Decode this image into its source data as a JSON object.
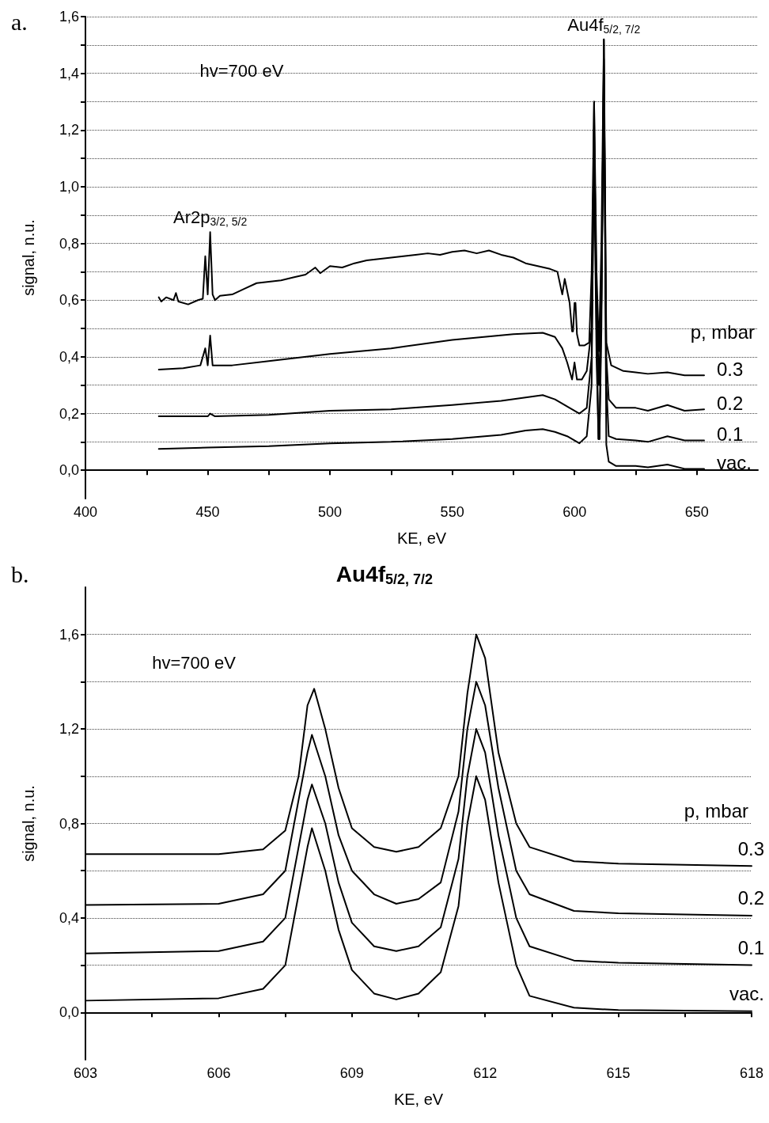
{
  "chart_data": [
    {
      "type": "line",
      "xlabel": "KE, eV",
      "ylabel": "signal, n.u.",
      "legend_title": "p, mbar",
      "legend": false,
      "grid": "y",
      "marker": "none",
      "line_style": "solid",
      "xlim": [
        400,
        675
      ],
      "xticks": [
        400,
        {
          "value": 425,
          "label": null
        },
        450,
        {
          "value": 475,
          "label": null
        },
        500,
        {
          "value": 525,
          "label": null
        },
        550,
        {
          "value": 575,
          "label": null
        },
        600,
        {
          "value": 625,
          "label": null
        },
        650
      ],
      "ylim": [
        -0.1,
        1.6
      ],
      "yticks": [
        {
          "value": 0,
          "label": "0,0"
        },
        {
          "value": 0.1,
          "label": null
        },
        {
          "value": 0.2,
          "label": "0,2"
        },
        {
          "value": 0.3,
          "label": null
        },
        {
          "value": 0.4,
          "label": "0,4"
        },
        {
          "value": 0.5,
          "label": null
        },
        {
          "value": 0.6,
          "label": "0,6"
        },
        {
          "value": 0.7,
          "label": null
        },
        {
          "value": 0.8,
          "label": "0,8"
        },
        {
          "value": 0.9,
          "label": null
        },
        {
          "value": 1.0,
          "label": "1,0"
        },
        {
          "value": 1.1,
          "label": null
        },
        {
          "value": 1.2,
          "label": "1,2"
        },
        {
          "value": 1.3,
          "label": null
        },
        {
          "value": 1.4,
          "label": "1,4"
        },
        {
          "value": 1.5,
          "label": null
        },
        {
          "value": 1.6,
          "label": "1,6"
        }
      ],
      "annotations": [
        "a.",
        "hv=700 eV",
        {
          "text": "Ar2p$_{3/2, 5/2}$",
          "x": 451,
          "y": 0.84
        },
        {
          "text": "Au4f$_{5/2, 7/2}$",
          "x": 612,
          "y": 1.52
        }
      ],
      "series": [
        {
          "name": "0.3",
          "color": "#000000",
          "x": [
            430,
            431,
            433,
            436,
            437,
            438,
            442,
            446,
            448,
            449,
            450,
            451,
            452,
            453,
            455,
            460,
            465,
            470,
            475,
            480,
            485,
            490,
            494,
            496,
            500,
            505,
            510,
            515,
            520,
            525,
            530,
            535,
            540,
            545,
            550,
            555,
            560,
            565,
            570,
            575,
            580,
            585,
            590,
            593,
            595,
            596,
            598,
            599,
            599.4,
            600,
            600.4,
            601,
            602,
            604,
            606,
            607,
            608,
            609,
            610,
            611,
            612,
            613,
            615,
            620,
            625,
            630,
            638,
            645,
            653
          ],
          "values": [
            0.61,
            0.595,
            0.61,
            0.6,
            0.625,
            0.595,
            0.585,
            0.6,
            0.605,
            0.755,
            0.62,
            0.84,
            0.62,
            0.6,
            0.615,
            0.62,
            0.64,
            0.66,
            0.665,
            0.67,
            0.68,
            0.69,
            0.715,
            0.695,
            0.72,
            0.715,
            0.73,
            0.74,
            0.745,
            0.75,
            0.755,
            0.76,
            0.765,
            0.76,
            0.77,
            0.775,
            0.765,
            0.775,
            0.76,
            0.75,
            0.73,
            0.72,
            0.71,
            0.7,
            0.62,
            0.675,
            0.59,
            0.49,
            0.49,
            0.59,
            0.59,
            0.48,
            0.44,
            0.44,
            0.45,
            0.7,
            1.3,
            0.7,
            0.42,
            0.8,
            1.52,
            0.45,
            0.37,
            0.35,
            0.345,
            0.34,
            0.345,
            0.335,
            0.335
          ]
        },
        {
          "name": "0.2",
          "color": "#000000",
          "x": [
            430,
            440,
            447,
            449,
            450,
            451,
            452,
            460,
            475,
            500,
            525,
            550,
            575,
            587,
            592,
            595,
            597,
            599,
            600,
            601,
            603,
            605,
            607,
            608,
            609,
            610,
            611,
            612,
            613,
            614,
            617,
            625,
            630,
            638,
            645,
            653
          ],
          "values": [
            0.355,
            0.36,
            0.37,
            0.43,
            0.37,
            0.475,
            0.37,
            0.37,
            0.385,
            0.41,
            0.43,
            0.46,
            0.48,
            0.485,
            0.47,
            0.43,
            0.38,
            0.32,
            0.38,
            0.32,
            0.32,
            0.35,
            0.5,
            1.2,
            0.6,
            0.3,
            0.6,
            1.45,
            0.4,
            0.25,
            0.22,
            0.22,
            0.21,
            0.23,
            0.21,
            0.215
          ]
        },
        {
          "name": "0.1",
          "color": "#000000",
          "x": [
            430,
            450,
            451,
            453,
            475,
            500,
            525,
            550,
            570,
            587,
            592,
            597,
            602,
            605,
            607,
            608,
            609,
            609.8,
            610.2,
            611,
            612,
            613,
            614,
            617,
            625,
            630,
            638,
            645,
            653
          ],
          "values": [
            0.19,
            0.19,
            0.2,
            0.19,
            0.195,
            0.21,
            0.215,
            0.23,
            0.245,
            0.265,
            0.25,
            0.225,
            0.2,
            0.22,
            0.4,
            1.1,
            0.4,
            0.11,
            0.11,
            0.6,
            1.4,
            0.3,
            0.12,
            0.11,
            0.105,
            0.1,
            0.12,
            0.105,
            0.105
          ]
        },
        {
          "name": "vac.",
          "color": "#000000",
          "x": [
            430,
            450,
            475,
            500,
            525,
            550,
            570,
            580,
            587,
            592,
            597,
            602,
            605,
            607,
            608,
            609,
            609.8,
            610.2,
            611,
            612,
            613,
            614,
            617,
            625,
            630,
            638,
            645,
            653
          ],
          "values": [
            0.075,
            0.08,
            0.085,
            0.095,
            0.1,
            0.11,
            0.125,
            0.14,
            0.145,
            0.135,
            0.12,
            0.095,
            0.12,
            0.3,
            1.3,
            0.5,
            0.11,
            0.11,
            0.5,
            1.52,
            0.09,
            0.03,
            0.015,
            0.015,
            0.01,
            0.02,
            0.005,
            0.005
          ]
        }
      ]
    },
    {
      "type": "line",
      "title": "Au4f$_{5/2, 7/2}$",
      "xlabel": "KE, eV",
      "ylabel": "signal, n.u.",
      "legend_title": "p, mbar",
      "legend": false,
      "grid": "y",
      "marker": "none",
      "line_style": "solid",
      "xlim": [
        603,
        618
      ],
      "xticks": [
        603,
        {
          "value": 604.5,
          "label": null
        },
        606,
        {
          "value": 607.5,
          "label": null
        },
        609,
        {
          "value": 610.5,
          "label": null
        },
        612,
        {
          "value": 613.5,
          "label": null
        },
        615,
        {
          "value": 616.5,
          "label": null
        },
        618
      ],
      "ylim": [
        -0.2,
        1.8
      ],
      "yticks": [
        {
          "value": 0,
          "label": "0,0"
        },
        {
          "value": 0.2,
          "label": null
        },
        {
          "value": 0.4,
          "label": "0,4"
        },
        {
          "value": 0.6,
          "label": null
        },
        {
          "value": 0.8,
          "label": "0,8"
        },
        {
          "value": 1.0,
          "label": null
        },
        {
          "value": 1.2,
          "label": "1,2"
        },
        {
          "value": 1.4,
          "label": null
        },
        {
          "value": 1.6,
          "label": "1,6"
        }
      ],
      "annotations": [
        "b.",
        "hv=700 eV"
      ],
      "series": [
        {
          "name": "0.3",
          "color": "#000000",
          "x": [
            603,
            606,
            607,
            607.5,
            607.8,
            608,
            608.15,
            608.4,
            608.7,
            609,
            609.5,
            610,
            610.5,
            611,
            611.4,
            611.6,
            611.8,
            612,
            612.3,
            612.7,
            613,
            614,
            615,
            618
          ],
          "values": [
            0.67,
            0.67,
            0.69,
            0.77,
            1.0,
            1.3,
            1.37,
            1.2,
            0.95,
            0.78,
            0.7,
            0.68,
            0.7,
            0.78,
            1.0,
            1.35,
            1.6,
            1.5,
            1.1,
            0.8,
            0.7,
            0.64,
            0.63,
            0.62
          ]
        },
        {
          "name": "0.2",
          "color": "#000000",
          "x": [
            603,
            606,
            607,
            607.5,
            607.8,
            608,
            608.1,
            608.4,
            608.7,
            609,
            609.5,
            610,
            610.5,
            611,
            611.4,
            611.6,
            611.8,
            612,
            612.3,
            612.7,
            613,
            614,
            615,
            618
          ],
          "values": [
            0.455,
            0.46,
            0.5,
            0.6,
            0.9,
            1.1,
            1.175,
            1.0,
            0.75,
            0.6,
            0.5,
            0.46,
            0.48,
            0.55,
            0.85,
            1.2,
            1.4,
            1.3,
            0.95,
            0.6,
            0.5,
            0.43,
            0.42,
            0.41
          ]
        },
        {
          "name": "0.1",
          "color": "#000000",
          "x": [
            603,
            606,
            607,
            607.5,
            607.8,
            608,
            608.1,
            608.4,
            608.7,
            609,
            609.5,
            610,
            610.5,
            611,
            611.4,
            611.6,
            611.8,
            612,
            612.3,
            612.7,
            613,
            614,
            615,
            618
          ],
          "values": [
            0.25,
            0.26,
            0.3,
            0.4,
            0.7,
            0.9,
            0.965,
            0.8,
            0.55,
            0.38,
            0.28,
            0.26,
            0.28,
            0.36,
            0.65,
            1.0,
            1.2,
            1.1,
            0.75,
            0.4,
            0.28,
            0.22,
            0.21,
            0.2
          ]
        },
        {
          "name": "vac.",
          "color": "#000000",
          "x": [
            603,
            606,
            607,
            607.5,
            607.8,
            608,
            608.1,
            608.4,
            608.7,
            609,
            609.5,
            610,
            610.5,
            611,
            611.4,
            611.6,
            611.8,
            612,
            612.3,
            612.7,
            613,
            614,
            615,
            618
          ],
          "values": [
            0.05,
            0.06,
            0.1,
            0.2,
            0.5,
            0.7,
            0.78,
            0.6,
            0.35,
            0.18,
            0.08,
            0.055,
            0.08,
            0.17,
            0.45,
            0.8,
            1.0,
            0.9,
            0.55,
            0.2,
            0.07,
            0.02,
            0.01,
            0.005
          ]
        }
      ]
    }
  ]
}
